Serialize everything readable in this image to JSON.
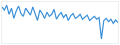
{
  "chart_data": {
    "type": "line",
    "color": "#3a8fd8",
    "tick_labels": false,
    "grid": false,
    "x": [
      0,
      1,
      2,
      3,
      4,
      5,
      6,
      7,
      8,
      9,
      10,
      11,
      12,
      13,
      14,
      15,
      16,
      17,
      18,
      19,
      20,
      21,
      22,
      23,
      24,
      25,
      26,
      27,
      28,
      29,
      30,
      31,
      32,
      33,
      34,
      35,
      36,
      37,
      38,
      39,
      40,
      41,
      42,
      43,
      44,
      45,
      46,
      47,
      48,
      49
    ],
    "values": [
      88,
      80,
      92,
      70,
      85,
      60,
      78,
      90,
      72,
      65,
      85,
      75,
      68,
      88,
      70,
      55,
      80,
      72,
      60,
      75,
      65,
      70,
      82,
      58,
      68,
      74,
      62,
      70,
      55,
      66,
      72,
      60,
      64,
      70,
      58,
      62,
      68,
      55,
      60,
      65,
      58,
      62,
      10,
      55,
      60,
      52,
      58,
      48,
      56,
      50
    ],
    "xlim": [
      0,
      49
    ],
    "ylim": [
      0,
      100
    ]
  }
}
